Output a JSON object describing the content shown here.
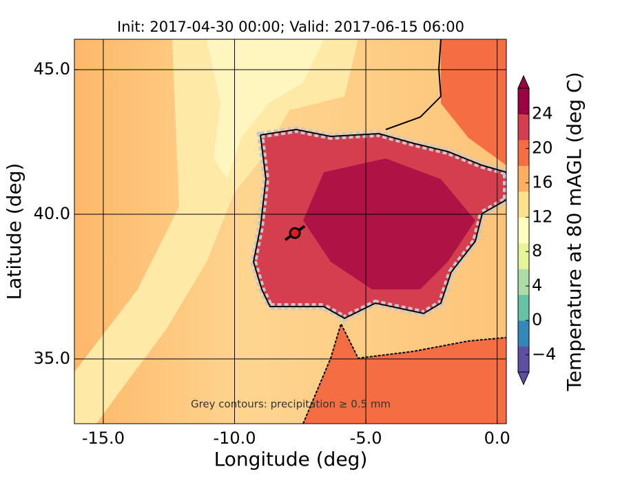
{
  "chart_data": {
    "type": "map",
    "title": "Init: 2017-04-30 00:00; Valid: 2017-06-15 06:00",
    "x_label": "Longitude (deg)",
    "y_label": "Latitude (deg)",
    "xlim": [
      -16.1,
      0.35
    ],
    "ylim": [
      32.76,
      46.05
    ],
    "xticks": [
      {
        "value": -15,
        "label": "-15.0"
      },
      {
        "value": -10,
        "label": "-10.0"
      },
      {
        "value": -5,
        "label": "-5.0"
      },
      {
        "value": 0,
        "label": "0.0"
      }
    ],
    "yticks": [
      {
        "value": 35,
        "label": "35.0"
      },
      {
        "value": 40,
        "label": "40.0"
      },
      {
        "value": 45,
        "label": "45.0"
      }
    ],
    "grid": true,
    "annotation": "Grey contours: precipitation ≥ 0.5 mm",
    "marker": {
      "lon": -7.7,
      "lat": 39.35,
      "color": "#e41a1c"
    },
    "colorbar": {
      "label": "Temperature at 80 mAGL (deg C)",
      "lim": [
        -6,
        27
      ],
      "ticks": [
        {
          "value": -4,
          "label": "−4"
        },
        0,
        4,
        8,
        12,
        16,
        20,
        24
      ],
      "colors": [
        "#5e4fa2",
        "#3288bd",
        "#66c2a5",
        "#abdda4",
        "#e6f598",
        "#ffffbf",
        "#fee08b",
        "#fdae61",
        "#f46d43",
        "#d53e4f",
        "#9e0142"
      ]
    }
  }
}
